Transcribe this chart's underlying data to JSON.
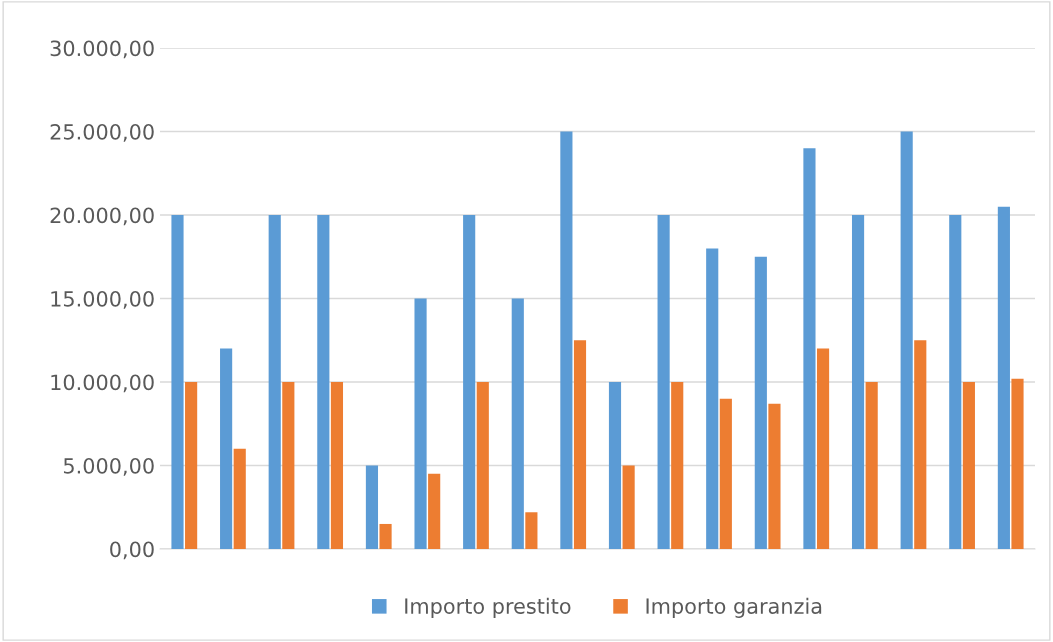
{
  "chart_data": {
    "type": "bar",
    "categories": [
      null,
      null,
      null,
      null,
      null,
      null,
      null,
      null,
      null,
      null,
      null,
      null,
      null,
      null,
      null,
      null,
      null,
      null
    ],
    "series": [
      {
        "name": "Importo prestito",
        "color": "#5b9bd5",
        "values": [
          20000,
          12000,
          20000,
          20000,
          5000,
          15000,
          20000,
          15000,
          25000,
          10000,
          20000,
          18000,
          17500,
          24000,
          20000,
          25000,
          20000,
          20500
        ]
      },
      {
        "name": "Importo garanzia",
        "color": "#ed7d31",
        "values": [
          10000,
          6000,
          10000,
          10000,
          1500,
          4500,
          10000,
          2200,
          12500,
          5000,
          10000,
          9000,
          8700,
          12000,
          10000,
          12500,
          10000,
          10200
        ]
      }
    ],
    "ylim": [
      0,
      30000
    ],
    "yticks": [
      {
        "value": 0,
        "label": "0,00"
      },
      {
        "value": 5000,
        "label": "5.000,00"
      },
      {
        "value": 10000,
        "label": "10.000,00"
      },
      {
        "value": 15000,
        "label": "15.000,00"
      },
      {
        "value": 20000,
        "label": "20.000,00"
      },
      {
        "value": 25000,
        "label": "25.000,00"
      },
      {
        "value": 30000,
        "label": "30.000,00"
      }
    ],
    "grid": "y",
    "legend": "bottom"
  }
}
